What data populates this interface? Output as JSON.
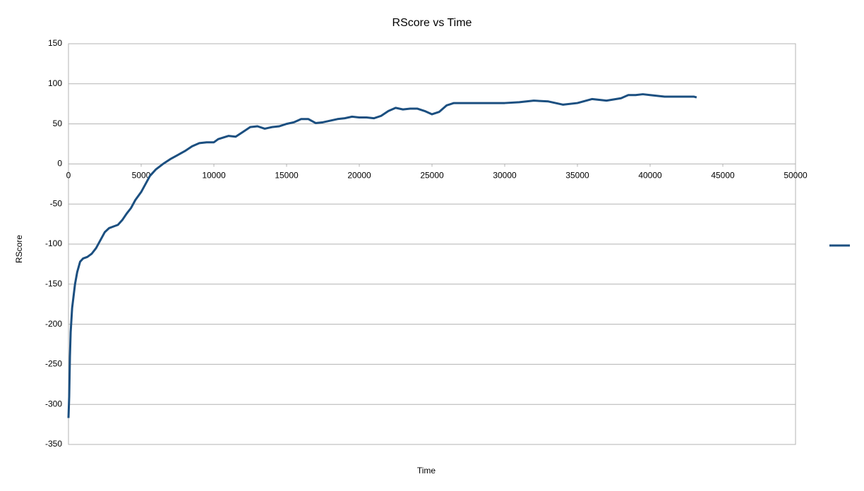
{
  "chart_data": {
    "type": "line",
    "title": "RScore vs Time",
    "x_label": "Time",
    "y_label": "RScore",
    "x": [
      0,
      50,
      100,
      150,
      250,
      350,
      450,
      600,
      800,
      1000,
      1300,
      1600,
      1900,
      2200,
      2500,
      2800,
      3100,
      3400,
      3700,
      4000,
      4300,
      4600,
      5000,
      5300,
      5600,
      6000,
      6500,
      7000,
      7500,
      8000,
      8500,
      9000,
      9500,
      10000,
      10300,
      11000,
      11500,
      12000,
      12500,
      13000,
      13500,
      14000,
      14500,
      15000,
      15500,
      16000,
      16500,
      17000,
      17500,
      18000,
      18500,
      19000,
      19500,
      20000,
      20500,
      21000,
      21500,
      22000,
      22500,
      23000,
      23500,
      24000,
      24500,
      25000,
      25500,
      26000,
      26500,
      27000,
      28000,
      29000,
      30000,
      31000,
      32000,
      33000,
      34000,
      35000,
      36000,
      37000,
      38000,
      38500,
      39000,
      39500,
      40000,
      40500,
      41000,
      42000,
      42500,
      43000,
      43200
    ],
    "series": [
      {
        "color": "#1b4f80",
        "values": [
          -317,
          -290,
          -240,
          -210,
          -180,
          -165,
          -150,
          -135,
          -122,
          -118,
          -116,
          -112,
          -105,
          -95,
          -85,
          -80,
          -78,
          -76,
          -70,
          -62,
          -55,
          -45,
          -35,
          -25,
          -15,
          -7,
          0,
          6,
          11,
          16,
          22,
          26,
          27,
          27,
          31,
          35,
          34,
          40,
          46,
          47,
          44,
          46,
          47,
          50,
          52,
          56,
          56,
          51,
          52,
          54,
          56,
          57,
          59,
          58,
          58,
          57,
          60,
          66,
          70,
          68,
          69,
          69,
          66,
          62,
          65,
          73,
          76,
          76,
          76,
          76,
          76,
          77,
          79,
          78,
          74,
          76,
          81,
          79,
          82,
          86,
          86,
          87,
          86,
          85,
          84,
          84,
          84,
          84,
          83
        ]
      }
    ],
    "xlim": [
      0,
      50000
    ],
    "xticks": [
      0,
      5000,
      10000,
      15000,
      20000,
      25000,
      30000,
      35000,
      40000,
      45000,
      50000
    ],
    "ylim": [
      -350,
      150
    ],
    "yticks": [
      -350,
      -300,
      -250,
      -200,
      -150,
      -100,
      -50,
      0,
      50,
      100,
      150
    ],
    "grid": true,
    "legend": "right"
  }
}
